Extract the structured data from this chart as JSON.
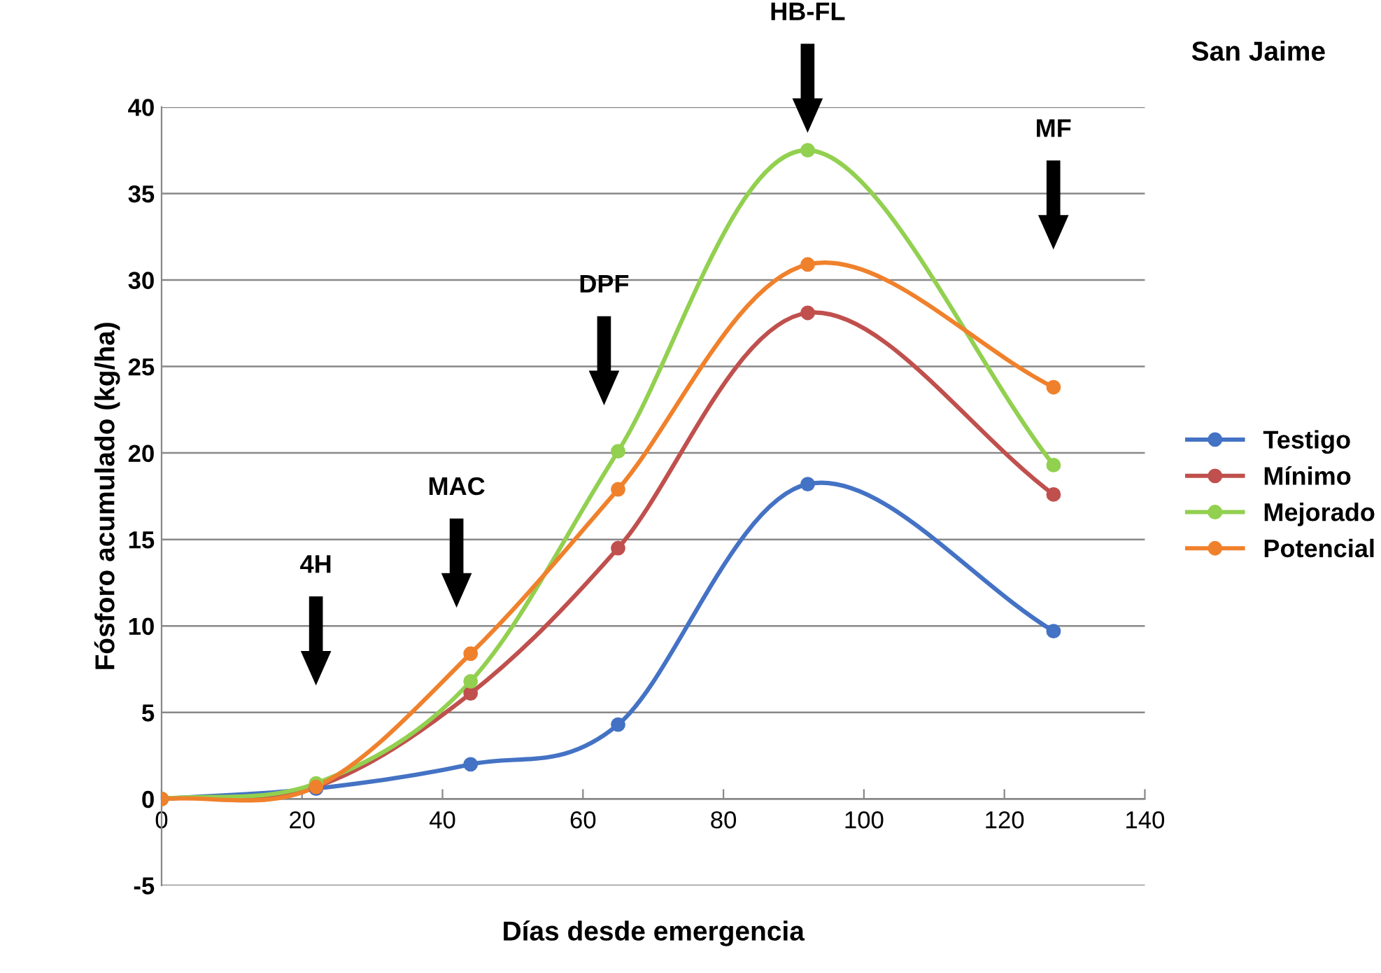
{
  "chart_data": {
    "type": "line",
    "title": "San Jaime",
    "xlabel": "Días desde emergencia",
    "ylabel": "Fósforo acumulado (kg/ha)",
    "x": [
      0,
      22,
      44,
      65,
      92,
      127
    ],
    "series": [
      {
        "name": "Testigo",
        "color": "#4472c4",
        "values": [
          0,
          0.6,
          2.0,
          4.3,
          18.2,
          9.7
        ]
      },
      {
        "name": "Mínimo",
        "color": "#c0504d",
        "values": [
          0,
          0.7,
          6.1,
          14.5,
          28.1,
          17.6
        ]
      },
      {
        "name": "Mejorado",
        "color": "#92d050",
        "values": [
          0,
          0.9,
          6.8,
          20.1,
          37.5,
          19.3
        ]
      },
      {
        "name": "Potencial",
        "color": "#f0812c",
        "values": [
          0,
          0.7,
          8.4,
          17.9,
          30.9,
          23.8
        ]
      }
    ],
    "annotations": [
      "4H",
      "MAC",
      "DPF",
      "HB-FL",
      "MF"
    ],
    "xlim": [
      0,
      140
    ],
    "xticks": [
      0,
      20,
      40,
      60,
      80,
      100,
      120,
      140
    ],
    "ylim": [
      -5,
      40
    ],
    "yticks": [
      -5,
      0,
      5,
      10,
      15,
      20,
      25,
      30,
      35,
      40
    ],
    "grid": "y",
    "legend": "right",
    "marker": "circle",
    "line_style": "solid"
  }
}
